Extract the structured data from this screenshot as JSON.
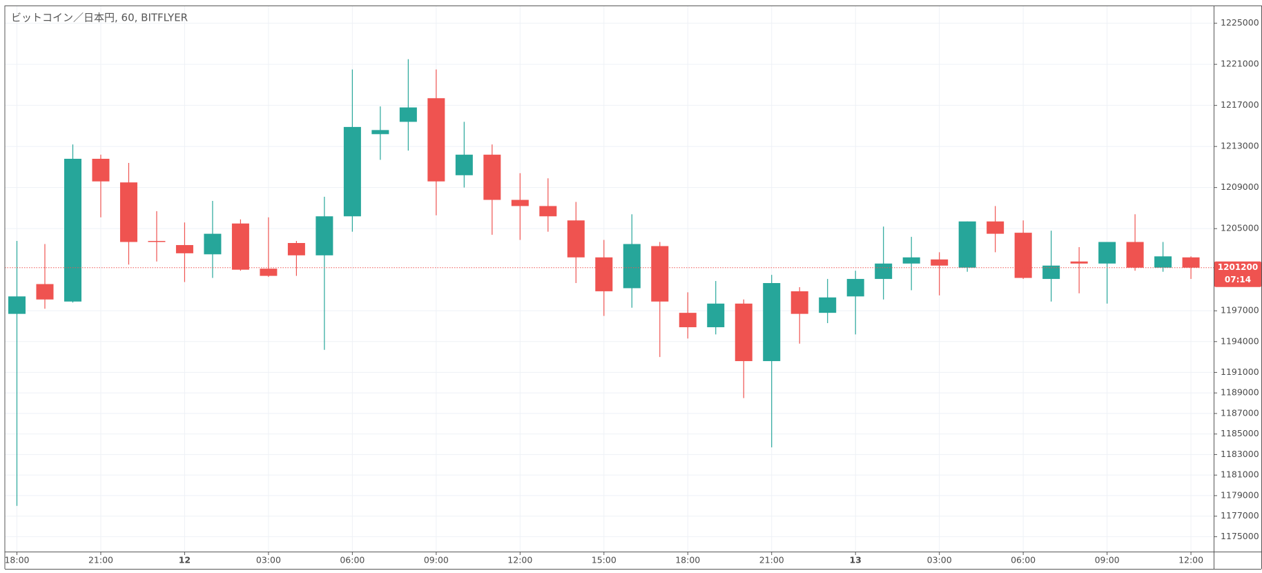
{
  "chart_data": {
    "type": "candlestick",
    "title": "ビットコイン／日本円, 60, BITFLYER",
    "categories": [
      "18:00",
      null,
      null,
      "21:00",
      null,
      null,
      "12",
      null,
      null,
      "03:00",
      null,
      null,
      "06:00",
      null,
      null,
      "09:00",
      null,
      null,
      "12:00",
      null,
      null,
      "15:00",
      null,
      null,
      "18:00",
      null,
      null,
      "21:00",
      null,
      null,
      "13",
      null,
      null,
      "03:00",
      null,
      null,
      "06:00",
      null,
      null,
      "09:00",
      null,
      null,
      "12:00"
    ],
    "open": [
      1196700,
      1199600,
      1197900,
      1211800,
      1209500,
      1203800,
      1203400,
      1202500,
      1205500,
      1201100,
      1203600,
      1202400,
      1206200,
      1214200,
      1215400,
      1217700,
      1210200,
      1212200,
      1207800,
      1207200,
      1205800,
      1202200,
      1199200,
      1203300,
      1196800,
      1195400,
      1197700,
      1192100,
      1198900,
      1196800,
      1198400,
      1200100,
      1201600,
      1202000,
      1201200,
      1205700,
      1204600,
      1200100,
      1201800,
      1201600,
      1203700,
      1201200,
      1202200
    ],
    "high": [
      1203800,
      1203500,
      1213200,
      1212200,
      1211400,
      1206700,
      1205600,
      1207700,
      1205900,
      1206100,
      1203800,
      1208100,
      1220500,
      1216900,
      1221500,
      1220500,
      1215400,
      1213200,
      1210400,
      1209900,
      1207600,
      1203900,
      1206400,
      1203700,
      1198800,
      1199900,
      1198100,
      1200500,
      1199300,
      1200100,
      1200900,
      1205200,
      1204200,
      1202700,
      1205700,
      1207200,
      1205800,
      1204800,
      1203200,
      1203700,
      1206400,
      1203700,
      1202300
    ],
    "low": [
      1178000,
      1197200,
      1197800,
      1206100,
      1201500,
      1201800,
      1199800,
      1200200,
      1200900,
      1200300,
      1200400,
      1193200,
      1204700,
      1211700,
      1212600,
      1206300,
      1209000,
      1204400,
      1203900,
      1204700,
      1199700,
      1196500,
      1197300,
      1192500,
      1194300,
      1194700,
      1188500,
      1183700,
      1193800,
      1195800,
      1194700,
      1198100,
      1199000,
      1198500,
      1200800,
      1202700,
      1200100,
      1197900,
      1198700,
      1197700,
      1200900,
      1200800,
      1200100
    ],
    "close": [
      1198400,
      1198100,
      1211800,
      1209600,
      1203700,
      1203700,
      1202600,
      1204500,
      1201000,
      1200400,
      1202400,
      1206200,
      1214900,
      1214600,
      1216800,
      1209600,
      1212200,
      1207800,
      1207200,
      1206200,
      1202200,
      1198900,
      1203500,
      1197900,
      1195400,
      1197700,
      1192100,
      1199700,
      1196700,
      1198300,
      1200100,
      1201600,
      1202200,
      1201400,
      1205700,
      1204500,
      1200200,
      1201400,
      1201600,
      1203700,
      1201200,
      1202300,
      1201200
    ],
    "up_color": "#26a69a",
    "down_color": "#ef5350",
    "ylim": [
      1173550,
      1226725
    ],
    "yticks": [
      1225000,
      1221000,
      1217000,
      1213000,
      1209000,
      1205000,
      1197000,
      1194000,
      1191000,
      1189000,
      1187000,
      1185000,
      1183000,
      1181000,
      1179000,
      1177000,
      1175000
    ],
    "grid": true,
    "last_price": 1201200,
    "countdown": "07:14"
  }
}
